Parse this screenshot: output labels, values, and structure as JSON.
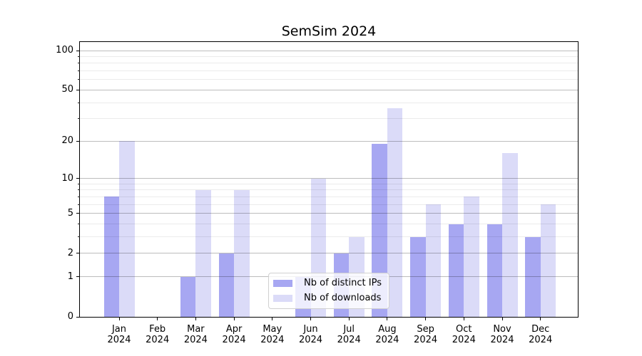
{
  "chart_data": {
    "type": "bar",
    "title": "SemSim 2024",
    "categories": [
      "Jan 2024",
      "Feb 2024",
      "Mar 2024",
      "Apr 2024",
      "May 2024",
      "Jun 2024",
      "Jul 2024",
      "Aug 2024",
      "Sep 2024",
      "Oct 2024",
      "Nov 2024",
      "Dec 2024"
    ],
    "series": [
      {
        "name": "Nb of distinct IPs",
        "color": "#a7a7f2",
        "values": [
          7,
          0,
          1,
          2,
          0,
          1,
          2,
          19,
          3,
          4,
          4,
          3
        ]
      },
      {
        "name": "Nb of downloads",
        "color": "#dbdbf8",
        "values": [
          20,
          0,
          8,
          8,
          0,
          10,
          3,
          36,
          6,
          7,
          16,
          6
        ]
      }
    ],
    "xlabel": "",
    "ylabel": "",
    "yscale": "log1p",
    "ylim": [
      0,
      116
    ],
    "yticks": [
      0,
      1,
      2,
      5,
      10,
      20,
      50,
      100
    ],
    "ytick_labels": [
      "0",
      "1",
      "2",
      "5",
      "10",
      "20",
      "50",
      "100"
    ],
    "minor_yticks": [
      3,
      4,
      6,
      7,
      8,
      9,
      30,
      40,
      60,
      70,
      80,
      90
    ],
    "grid": "horizontal major+minor, drawn over bars",
    "legend_position": "lower center",
    "bar_layout": "paired, series side by side, no gap within pair"
  }
}
